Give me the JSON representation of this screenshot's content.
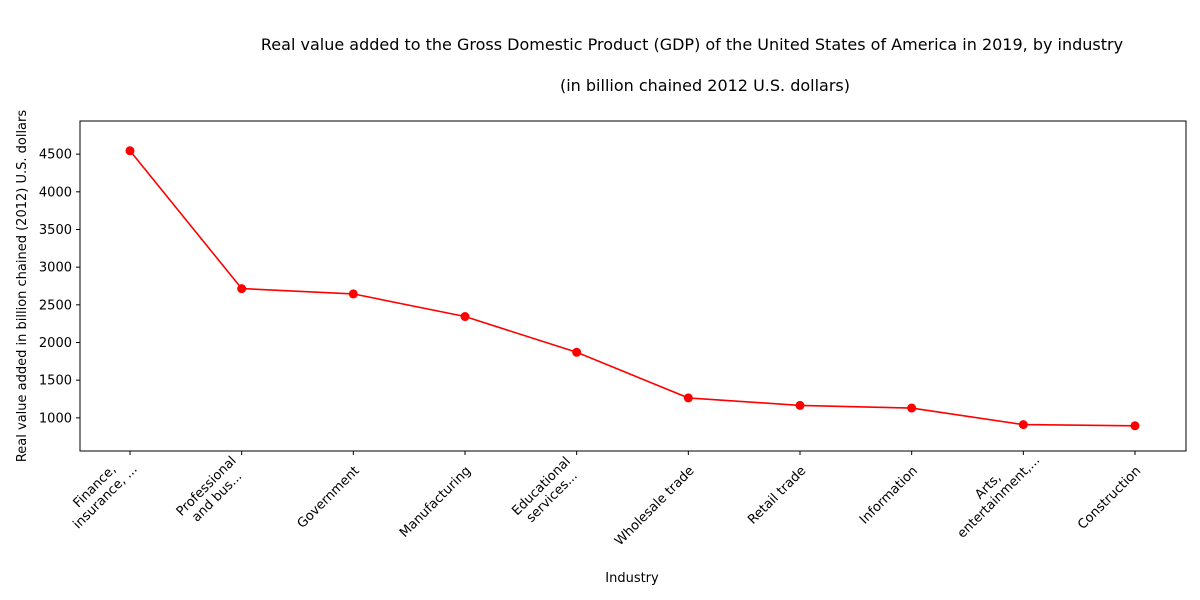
{
  "chart_data": {
    "type": "line",
    "title": "Real value added to the Gross Domestic Product (GDP) of the United States of America in 2019, by industry",
    "subtitle": "(in billion chained 2012 U.S. dollars)",
    "xlabel": "Industry",
    "ylabel": "Real value added in billion chained (2012) U.S. dollars",
    "categories": [
      [
        "Finance,",
        "insurance, ..."
      ],
      [
        "Professional",
        "and bus..."
      ],
      [
        "Government"
      ],
      [
        "Manufacturing"
      ],
      [
        "Educational",
        "services..."
      ],
      [
        "Wholesale trade"
      ],
      [
        "Retail trade"
      ],
      [
        "Information"
      ],
      [
        "Arts,",
        "entertainment,..."
      ],
      [
        "Construction"
      ]
    ],
    "series": [
      {
        "values": [
          4545,
          2715,
          2645,
          2345,
          1870,
          1265,
          1165,
          1130,
          910,
          895
        ],
        "color": "#ff0000"
      }
    ],
    "yticks": [
      1000,
      1500,
      2000,
      2500,
      3000,
      3500,
      4000,
      4500
    ],
    "ylim": [
      560,
      4940
    ],
    "grid": false,
    "legend": "none"
  }
}
